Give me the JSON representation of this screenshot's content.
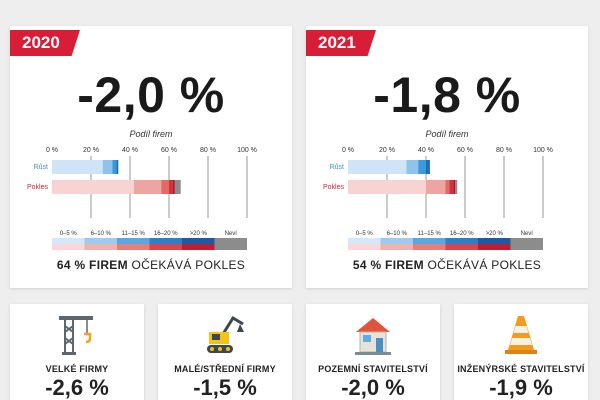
{
  "chart_data": [
    {
      "type": "bar",
      "year": "2020",
      "headline_value": "-2,0 %",
      "share_title": "Podíl firem",
      "x_ticks": [
        "0 %",
        "20 %",
        "40 %",
        "60 %",
        "80 %",
        "100 %"
      ],
      "xlim": [
        0,
        100
      ],
      "rows": [
        {
          "label": "Růst",
          "segments": [
            {
              "band": "0–5 %",
              "value": 26
            },
            {
              "band": "6–10 %",
              "value": 5
            },
            {
              "band": "11–15 %",
              "value": 2
            },
            {
              "band": "16–20 %",
              "value": 1
            }
          ]
        },
        {
          "label": "Pokles",
          "segments": [
            {
              "band": "0–5 %",
              "value": 42
            },
            {
              "band": "6–10 %",
              "value": 14
            },
            {
              "band": "11–15 %",
              "value": 4
            },
            {
              "band": "16–20 %",
              "value": 2
            },
            {
              "band": ">20 %",
              "value": 1
            },
            {
              "band": "Neví",
              "value": 3
            }
          ]
        }
      ],
      "legend": [
        "0–5 %",
        "6–10 %",
        "11–15 %",
        "16–20 %",
        ">20 %",
        "Neví"
      ],
      "summary_bold": "64 % FIREM",
      "summary_rest": "OČEKÁVÁ POKLES"
    },
    {
      "type": "bar",
      "year": "2021",
      "headline_value": "-1,8 %",
      "share_title": "Podíl firem",
      "x_ticks": [
        "0 %",
        "20 %",
        "40 %",
        "60 %",
        "80 %",
        "100 %"
      ],
      "xlim": [
        0,
        100
      ],
      "rows": [
        {
          "label": "Růst",
          "segments": [
            {
              "band": "0–5 %",
              "value": 30
            },
            {
              "band": "6–10 %",
              "value": 6
            },
            {
              "band": "11–15 %",
              "value": 4
            },
            {
              "band": "16–20 %",
              "value": 2
            }
          ]
        },
        {
          "label": "Pokles",
          "segments": [
            {
              "band": "0–5 %",
              "value": 40
            },
            {
              "band": "6–10 %",
              "value": 10
            },
            {
              "band": "11–15 %",
              "value": 2
            },
            {
              "band": "16–20 %",
              "value": 2
            },
            {
              "band": ">20 %",
              "value": 1
            },
            {
              "band": "Neví",
              "value": 1
            }
          ]
        }
      ],
      "legend": [
        "0–5 %",
        "6–10 %",
        "11–15 %",
        "16–20 %",
        ">20 %",
        "Neví"
      ],
      "summary_bold": "54 % FIREM",
      "summary_rest": "OČEKÁVÁ POKLES"
    }
  ],
  "colors": {
    "accent": "#d81e36",
    "growth": [
      "#cfe4f7",
      "#8ec3ee",
      "#3b99dd",
      "#1b6fb6"
    ],
    "decline": [
      "#f7d3d1",
      "#eca5a0",
      "#e06a66",
      "#d62e3b",
      "#b3122a"
    ],
    "unknown": "#8c8c8c",
    "legend_top": [
      "#d6e8f7",
      "#9fcaef",
      "#5aa6e2",
      "#2f7ec8",
      "#1d5aa3",
      "#8c8c8c"
    ],
    "legend_bottom": [
      "#f8d9d7",
      "#f0b2ad",
      "#e57f7a",
      "#d84450",
      "#c01d33",
      "#8c8c8c"
    ]
  },
  "segments": [
    {
      "name": "VELKÉ FIRMY",
      "value": "-2,6 %",
      "icon": "crane-icon"
    },
    {
      "name": "MALÉ/STŘEDNÍ FIRMY",
      "value": "-1,5 %",
      "icon": "excavator-icon"
    },
    {
      "name": "POZEMNÍ STAVITELSTVÍ",
      "value": "-2,0 %",
      "icon": "house-icon"
    },
    {
      "name": "INŽENÝRSKÉ STAVITELSTVÍ",
      "value": "-1,9 %",
      "icon": "traffic-cone-icon"
    }
  ]
}
